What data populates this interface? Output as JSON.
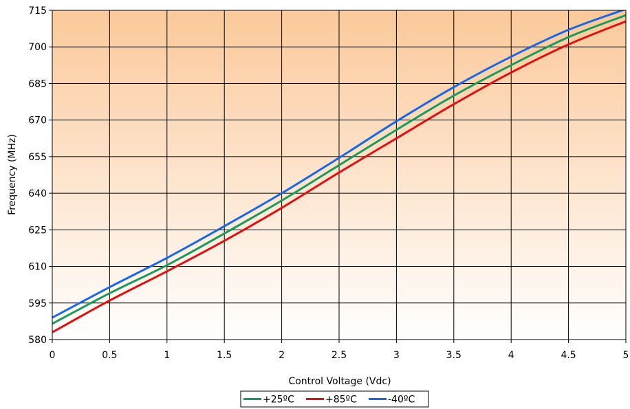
{
  "chart_data": {
    "type": "line",
    "title": "",
    "xlabel": "Control Voltage (Vdc)",
    "ylabel": "Frequency (MHz)",
    "xlim": [
      0,
      5
    ],
    "ylim": [
      580,
      715
    ],
    "x_ticks": [
      "0",
      "0.5",
      "1",
      "1.5",
      "2",
      "2.5",
      "3",
      "3.5",
      "4",
      "4.5",
      "5"
    ],
    "y_ticks": [
      "580",
      "595",
      "610",
      "625",
      "640",
      "655",
      "670",
      "685",
      "700",
      "715"
    ],
    "grid": true,
    "background": {
      "top": "#fbc99a",
      "bottom": "#ffffff"
    },
    "legend_position": "bottom-center",
    "x": [
      0,
      0.5,
      1,
      1.5,
      2,
      2.5,
      3,
      3.5,
      4,
      4.5,
      5
    ],
    "series": [
      {
        "name": "+25ºC",
        "color": "#1a9a5a",
        "values": [
          586.5,
          599,
          610.5,
          623.5,
          637,
          651.5,
          666,
          680,
          692.5,
          704,
          713
        ]
      },
      {
        "name": "+85ºC",
        "color": "#e01010",
        "values": [
          583,
          596,
          608,
          620.5,
          634,
          648.5,
          662.5,
          676.5,
          689.5,
          701,
          710.5
        ]
      },
      {
        "name": "-40ºC",
        "color": "#1a66e8",
        "values": [
          589,
          601.5,
          613.5,
          626.5,
          640,
          654.5,
          669.5,
          683.5,
          696,
          707,
          715.5
        ]
      }
    ]
  }
}
